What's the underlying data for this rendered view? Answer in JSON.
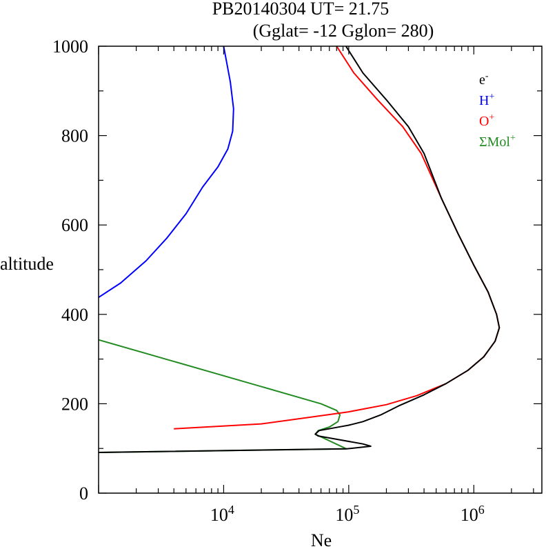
{
  "chart_data": {
    "type": "line",
    "title": "PB20140304   UT=  21.75",
    "subtitle": "(Gglat= -12   Gglon=  280)",
    "xlabel": "Ne",
    "ylabel": "altitude",
    "x_scale": "log",
    "xlim": [
      1000,
      3500000
    ],
    "ylim": [
      0,
      1000
    ],
    "x_ticks": [
      {
        "value": 10000,
        "base": "10",
        "exp": "4"
      },
      {
        "value": 100000,
        "base": "10",
        "exp": "5"
      },
      {
        "value": 1000000,
        "base": "10",
        "exp": "6"
      }
    ],
    "y_ticks": [
      0,
      200,
      400,
      600,
      800,
      1000
    ],
    "grid": false,
    "legend_position": "top-right",
    "series": [
      {
        "name": "e-",
        "base": "e",
        "sup": "-",
        "color": "#000000",
        "points": [
          [
            1000,
            91
          ],
          [
            96000,
            99
          ],
          [
            150000,
            105
          ],
          [
            130000,
            110
          ],
          [
            57000,
            128
          ],
          [
            54000,
            132
          ],
          [
            58000,
            140
          ],
          [
            80000,
            147
          ],
          [
            100000,
            152
          ],
          [
            130000,
            160
          ],
          [
            180000,
            175
          ],
          [
            250000,
            195
          ],
          [
            400000,
            220
          ],
          [
            600000,
            245
          ],
          [
            900000,
            275
          ],
          [
            1200000,
            305
          ],
          [
            1480000,
            340
          ],
          [
            1600000,
            370
          ],
          [
            1520000,
            400
          ],
          [
            1300000,
            450
          ],
          [
            1000000,
            510
          ],
          [
            750000,
            580
          ],
          [
            550000,
            660
          ],
          [
            400000,
            760
          ],
          [
            300000,
            820
          ],
          [
            200000,
            880
          ],
          [
            130000,
            940
          ],
          [
            95000,
            1000
          ]
        ]
      },
      {
        "name": "H+",
        "base": "H",
        "sup": "+",
        "color": "#0000ff",
        "points": [
          [
            1000,
            438
          ],
          [
            1500,
            470
          ],
          [
            2400,
            520
          ],
          [
            3500,
            570
          ],
          [
            5000,
            625
          ],
          [
            6800,
            685
          ],
          [
            9000,
            730
          ],
          [
            10800,
            770
          ],
          [
            11800,
            810
          ],
          [
            12000,
            860
          ],
          [
            11300,
            920
          ],
          [
            10000,
            1000
          ]
        ]
      },
      {
        "name": "O+",
        "base": "O",
        "sup": "+",
        "color": "#ff0000",
        "points": [
          [
            4000,
            144
          ],
          [
            20000,
            155
          ],
          [
            50000,
            170
          ],
          [
            100000,
            182
          ],
          [
            200000,
            198
          ],
          [
            350000,
            218
          ],
          [
            600000,
            245
          ],
          [
            900000,
            275
          ],
          [
            1200000,
            305
          ],
          [
            1480000,
            340
          ],
          [
            1600000,
            370
          ],
          [
            1520000,
            400
          ],
          [
            1300000,
            450
          ],
          [
            1000000,
            510
          ],
          [
            750000,
            580
          ],
          [
            550000,
            660
          ],
          [
            380000,
            760
          ],
          [
            270000,
            820
          ],
          [
            170000,
            880
          ],
          [
            110000,
            940
          ],
          [
            80000,
            1000
          ]
        ]
      },
      {
        "name": "ΣMol+",
        "base": "ΣMol",
        "sup": "+",
        "color": "#228b22",
        "points": [
          [
            1000,
            343
          ],
          [
            60000,
            200
          ],
          [
            80000,
            185
          ],
          [
            85000,
            175
          ],
          [
            82000,
            160
          ],
          [
            70000,
            148
          ],
          [
            57000,
            140
          ],
          [
            54000,
            132
          ],
          [
            58000,
            128
          ],
          [
            96000,
            99
          ],
          [
            1000,
            91
          ]
        ]
      }
    ]
  }
}
